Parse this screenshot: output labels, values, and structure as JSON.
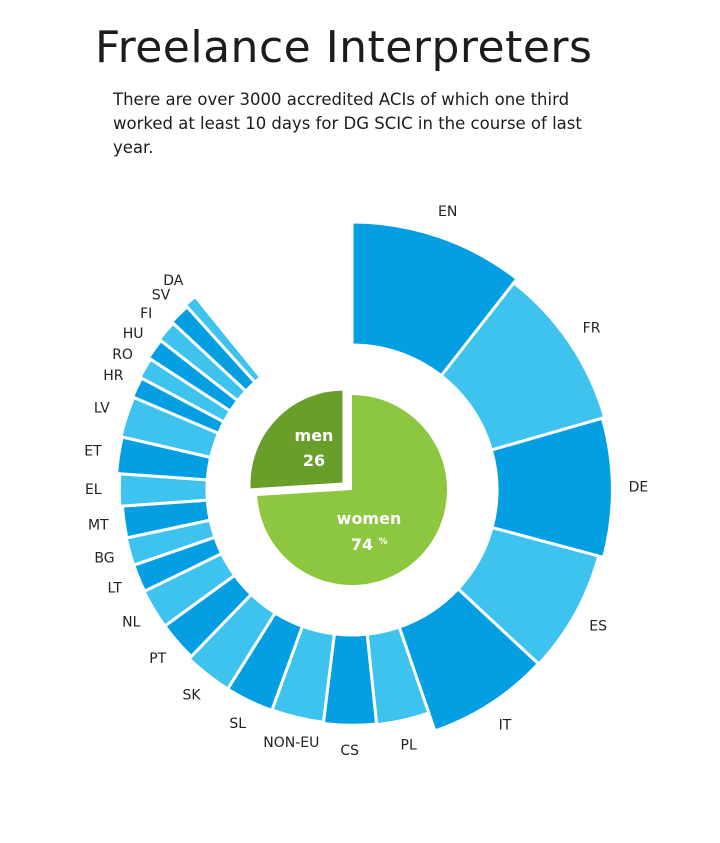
{
  "header": {
    "title": "Freelance Interpreters",
    "subtitle": "There are over 3000 accredited ACIs of which one third worked at least 10 days for DG SCIC in the course of last year."
  },
  "colors": {
    "dark": "#049fe3",
    "light": "#3ec3ef",
    "women": "#8dc63f",
    "men": "#6a9e2a",
    "background": "#ffffff"
  },
  "chart_data": [
    {
      "type": "radial-bar",
      "title": "",
      "categories": [
        "EN",
        "FR",
        "DE",
        "ES",
        "IT",
        "PL",
        "CS",
        "NON-EU",
        "SL",
        "SK",
        "PT",
        "NL",
        "LT",
        "BG",
        "MT",
        "EL",
        "ET",
        "LV",
        "HR",
        "RO",
        "HU",
        "FI",
        "SV",
        "DA"
      ],
      "values": [
        1.0,
        0.92,
        0.88,
        0.8,
        0.79,
        0.49,
        0.48,
        0.46,
        0.47,
        0.47,
        0.42,
        0.42,
        0.41,
        0.41,
        0.4,
        0.44,
        0.49,
        0.51,
        0.53,
        0.56,
        0.6,
        0.63,
        0.66,
        0.7
      ],
      "angles_deg": [
        38,
        36,
        31,
        28,
        28,
        13,
        13,
        13,
        12,
        12,
        10,
        10,
        7,
        7,
        8,
        8,
        9,
        10,
        5,
        5,
        5,
        5,
        5,
        3
      ],
      "value_scale": "relative length (outer radius), unlabeled"
    },
    {
      "type": "pie",
      "title": "",
      "labels": [
        "women",
        "men"
      ],
      "values": [
        74,
        26
      ],
      "value_labels": [
        "74",
        "26"
      ],
      "unit_label": "%"
    }
  ]
}
